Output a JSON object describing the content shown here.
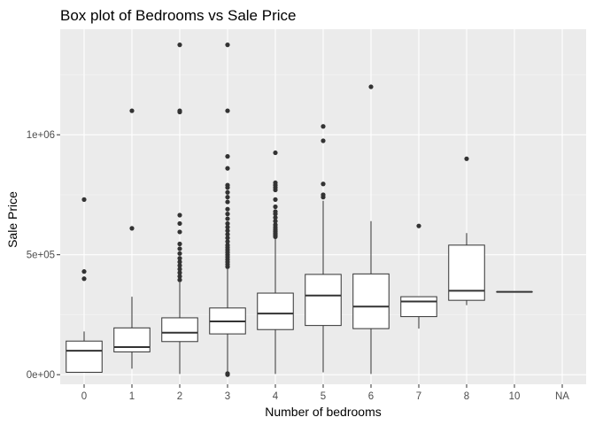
{
  "chart_data": {
    "type": "box",
    "title": "Box plot of Bedrooms vs Sale Price",
    "xlabel": "Number of bedrooms",
    "ylabel": "Sale Price",
    "categories": [
      "0",
      "1",
      "2",
      "3",
      "4",
      "5",
      "6",
      "7",
      "8",
      "10",
      "NA"
    ],
    "ylim": [
      -40000,
      1440000
    ],
    "yticks": [
      0,
      500000,
      1000000
    ],
    "ytick_labels": [
      "0e+00",
      "5e+05",
      "1e+06"
    ],
    "boxes": [
      {
        "category": "0",
        "q1": 10000,
        "median": 100000,
        "q3": 140000,
        "whisker_low": 10000,
        "whisker_high": 180000,
        "outliers": [
          400000,
          430000,
          730000
        ]
      },
      {
        "category": "1",
        "q1": 95000,
        "median": 115000,
        "q3": 195000,
        "whisker_low": 25000,
        "whisker_high": 325000,
        "outliers": [
          610000,
          1100000
        ]
      },
      {
        "category": "2",
        "q1": 138000,
        "median": 175000,
        "q3": 237000,
        "whisker_low": 3000,
        "whisker_high": 385000,
        "outliers": [
          395000,
          410000,
          425000,
          440000,
          455000,
          470000,
          485000,
          505000,
          525000,
          545000,
          595000,
          630000,
          665000,
          1095000,
          1100000,
          1375000
        ]
      },
      {
        "category": "3",
        "q1": 170000,
        "median": 222000,
        "q3": 278000,
        "whisker_low": 2000,
        "whisker_high": 440000,
        "outliers": [
          0,
          5000,
          450000,
          460000,
          470000,
          480000,
          490000,
          500000,
          510000,
          520000,
          530000,
          540000,
          555000,
          570000,
          585000,
          600000,
          615000,
          630000,
          650000,
          670000,
          690000,
          720000,
          740000,
          760000,
          780000,
          790000,
          860000,
          910000,
          1100000,
          1375000
        ]
      },
      {
        "category": "4",
        "q1": 188000,
        "median": 255000,
        "q3": 340000,
        "whisker_low": 3000,
        "whisker_high": 568000,
        "outliers": [
          575000,
          583000,
          590000,
          598000,
          606000,
          615000,
          625000,
          640000,
          655000,
          670000,
          680000,
          700000,
          730000,
          770000,
          780000,
          790000,
          800000,
          925000
        ]
      },
      {
        "category": "5",
        "q1": 205000,
        "median": 330000,
        "q3": 418000,
        "whisker_low": 10000,
        "whisker_high": 725000,
        "outliers": [
          740000,
          750000,
          795000,
          975000,
          1035000
        ]
      },
      {
        "category": "6",
        "q1": 192000,
        "median": 284000,
        "q3": 420000,
        "whisker_low": 3000,
        "whisker_high": 640000,
        "outliers": [
          1200000
        ]
      },
      {
        "category": "7",
        "q1": 242000,
        "median": 305000,
        "q3": 325000,
        "whisker_low": 192000,
        "whisker_high": 325000,
        "outliers": [
          620000
        ]
      },
      {
        "category": "8",
        "q1": 310000,
        "median": 350000,
        "q3": 540000,
        "whisker_low": 290000,
        "whisker_high": 590000,
        "outliers": [
          900000
        ]
      },
      {
        "category": "10",
        "q1": 345000,
        "median": 345000,
        "q3": 345000,
        "whisker_low": 345000,
        "whisker_high": 345000,
        "outliers": []
      },
      {
        "category": "NA",
        "q1": null,
        "median": null,
        "q3": null,
        "whisker_low": null,
        "whisker_high": null,
        "outliers": []
      }
    ],
    "grid": true,
    "legend": "none",
    "colors": {
      "panel": "#ebebeb",
      "grid_major": "#ffffff",
      "grid_minor": "#f5f5f5",
      "box_fill": "#ffffff",
      "box_line": "#333333",
      "outlier": "#333333"
    }
  }
}
